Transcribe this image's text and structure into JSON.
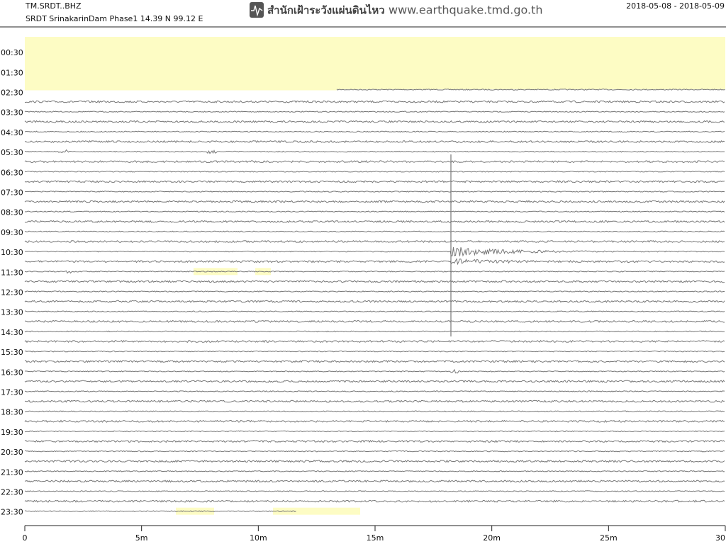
{
  "chart_data": {
    "type": "helicorder",
    "station": "TM.SRDT..BHZ",
    "subtitle": "SRDT SrinakarinDam Phase1  14.39 N 99.12 E",
    "agency": "สำนักเฝ้าระวังแผ่นดินไหว",
    "url": "www.earthquake.tmd.go.th",
    "date_range": "2018-05-08 - 2018-05-09",
    "row_labels": [
      "00:30",
      "01:30",
      "02:30",
      "03:30",
      "04:30",
      "05:30",
      "06:30",
      "07:30",
      "08:30",
      "09:30",
      "10:30",
      "11:30",
      "12:30",
      "13:30",
      "14:30",
      "15:30",
      "16:30",
      "17:30",
      "18:30",
      "19:30",
      "20:30",
      "21:30",
      "22:30",
      "23:30"
    ],
    "xlim": [
      0,
      30
    ],
    "xticks": [
      0,
      {
        "value": 5,
        "label": "5m"
      },
      {
        "value": 10,
        "label": "10m"
      },
      {
        "value": 15,
        "label": "15m"
      },
      {
        "value": 20,
        "label": "20m"
      },
      {
        "value": 25,
        "label": "25m"
      },
      {
        "value": 30,
        "label": "30"
      }
    ],
    "trace_color": "#777777",
    "gap_color": "#fdfcc4"
  }
}
